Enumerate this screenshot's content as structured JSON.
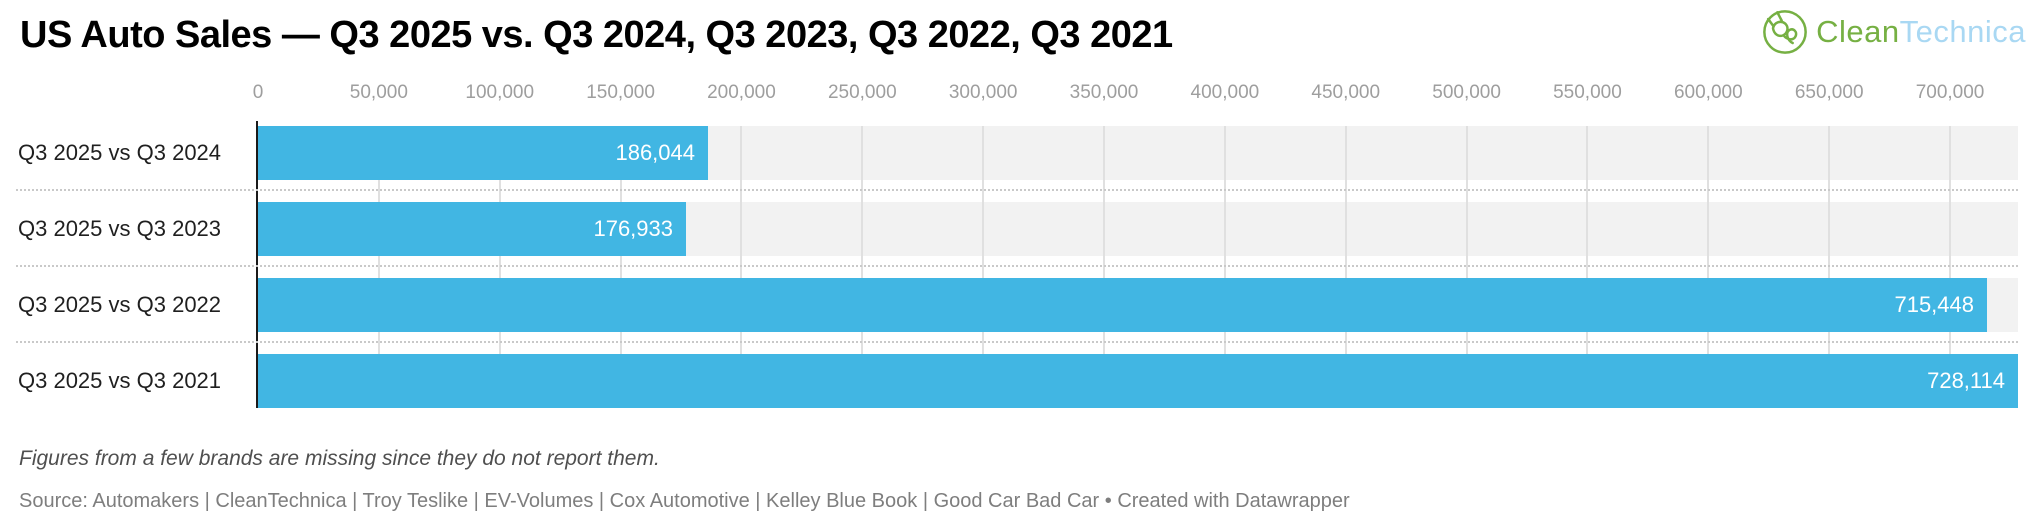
{
  "header": {
    "title": "US Auto Sales — Q3 2025 vs. Q3 2024, Q3 2023, Q3 2022, Q3 2021",
    "logo": {
      "clean": "Clean",
      "technica": "Technica",
      "icon": "cleantechnica-leaf-plug-icon",
      "green": "#76b043",
      "light_blue": "#a9d8f3"
    }
  },
  "chart_data": {
    "type": "bar",
    "orientation": "horizontal",
    "title": "US Auto Sales — Q3 2025 vs. Q3 2024, Q3 2023, Q3 2022, Q3 2021",
    "categories": [
      "Q3 2025 vs Q3 2024",
      "Q3 2025 vs Q3 2023",
      "Q3 2025 vs Q3 2022",
      "Q3 2025 vs Q3 2021"
    ],
    "values": [
      186044,
      176933,
      715448,
      728114
    ],
    "value_labels": [
      "186,044",
      "176,933",
      "715,448",
      "728,114"
    ],
    "x_ticks": [
      0,
      50000,
      100000,
      150000,
      200000,
      250000,
      300000,
      350000,
      400000,
      450000,
      500000,
      550000,
      600000,
      650000,
      700000
    ],
    "x_tick_labels": [
      "0",
      "50,000",
      "100,000",
      "150,000",
      "200,000",
      "250,000",
      "300,000",
      "350,000",
      "400,000",
      "450,000",
      "500,000",
      "550,000",
      "600,000",
      "650,000",
      "700,000"
    ],
    "xlim": [
      0,
      728114
    ],
    "grid": true,
    "legend": "none",
    "bar_color": "#41b6e3",
    "band_color": "#f2f2f2",
    "value_label_color": "#ffffff"
  },
  "footer": {
    "note": "Figures from a few brands are missing since they do not report them.",
    "source": "Source: Automakers | CleanTechnica | Troy Teslike | EV-Volumes | Cox Automotive | Kelley Blue Book | Good Car Bad Car • Created with Datawrapper"
  }
}
